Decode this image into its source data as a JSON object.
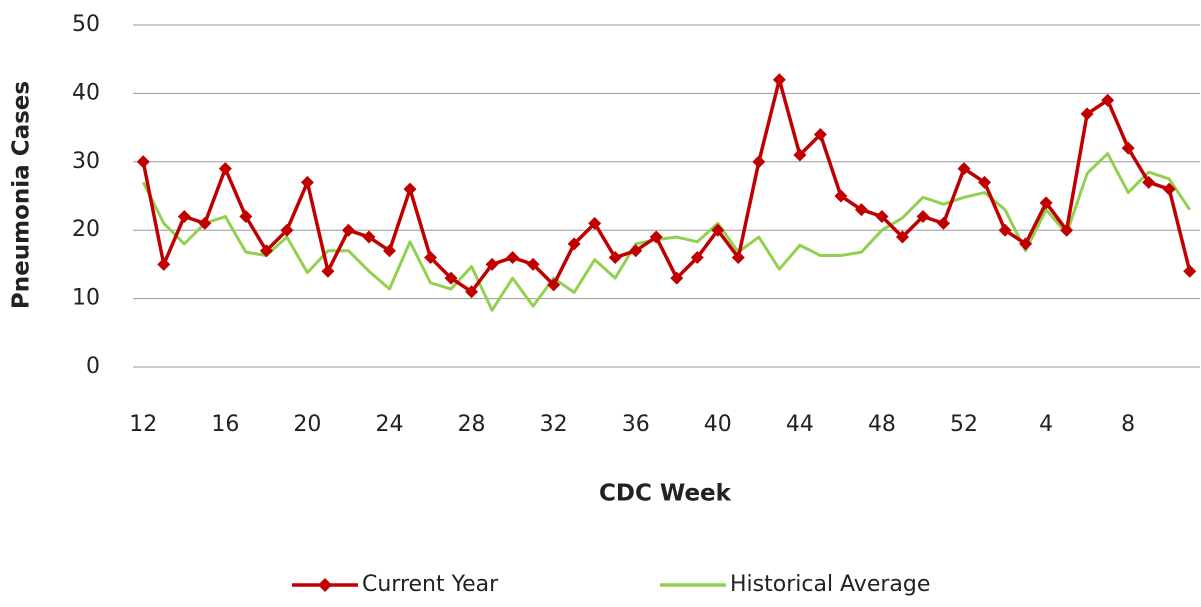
{
  "chart_data": {
    "type": "line",
    "x_label": "CDC Week",
    "y_label": "Pneumonia Cases",
    "categories": [
      "12",
      null,
      null,
      null,
      "16",
      null,
      null,
      null,
      "20",
      null,
      null,
      null,
      "24",
      null,
      null,
      null,
      "28",
      null,
      null,
      null,
      "32",
      null,
      null,
      null,
      "36",
      null,
      null,
      null,
      "40",
      null,
      null,
      null,
      "44",
      null,
      null,
      null,
      "48",
      null,
      null,
      null,
      "52",
      null,
      null,
      null,
      "4",
      null,
      null,
      null,
      "8",
      null,
      null,
      null
    ],
    "series": [
      {
        "name": "Current Year",
        "color": "#c00000",
        "marker": true,
        "values": [
          30,
          15,
          22,
          21,
          29,
          22,
          17,
          20,
          27,
          14,
          20,
          19,
          17,
          26,
          16,
          13,
          11,
          15,
          16,
          15,
          12,
          18,
          21,
          16,
          17,
          19,
          13,
          16,
          20,
          16,
          30,
          42,
          31,
          34,
          25,
          23,
          22,
          19,
          22,
          21,
          29,
          27,
          20,
          18,
          24,
          20,
          37,
          39,
          32,
          27,
          26,
          14
        ]
      },
      {
        "name": "Historical Average",
        "color": "#92d050",
        "marker": false,
        "values": [
          27,
          21,
          18,
          21,
          22,
          16.8,
          16.3,
          19,
          13.8,
          17,
          17,
          14,
          11.4,
          18.3,
          12.3,
          11.4,
          14.7,
          8.3,
          13,
          8.9,
          13,
          10.9,
          15.7,
          13,
          18,
          18.6,
          19,
          18.3,
          21,
          16.8,
          19,
          14.3,
          17.8,
          16.3,
          16.3,
          16.8,
          20,
          21.8,
          24.8,
          23.8,
          24.8,
          25.5,
          23,
          17,
          23,
          19.5,
          28.3,
          31.2,
          25.5,
          28.5,
          27.5,
          23
        ]
      }
    ],
    "ylim": [
      0,
      50
    ],
    "yticks": [
      0,
      10,
      20,
      30,
      40,
      50
    ],
    "grid": true,
    "legend": "bottom"
  }
}
